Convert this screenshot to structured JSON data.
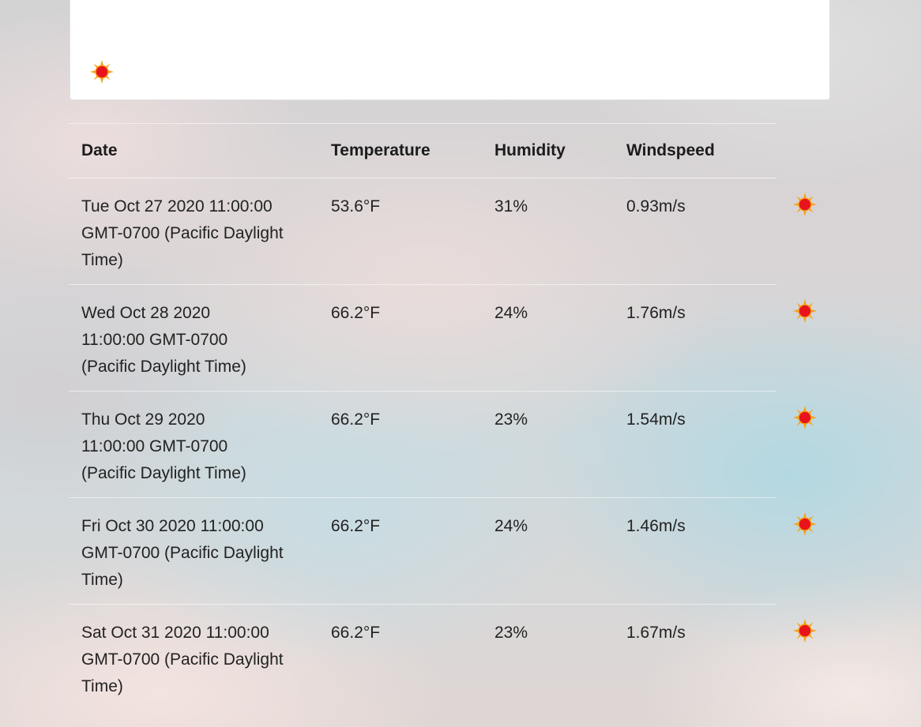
{
  "top_card": {
    "icon": "sun-icon"
  },
  "table": {
    "headers": {
      "date": "Date",
      "temperature": "Temperature",
      "humidity": "Humidity",
      "windspeed": "Windspeed"
    },
    "rows": [
      {
        "date": "Tue Oct 27 2020 11:00:00 GMT-0700 (Pacific Daylight Time)",
        "temperature": "53.6°F",
        "humidity": "31%",
        "windspeed": "0.93m/s",
        "icon": "sun-icon"
      },
      {
        "date": "Wed Oct 28 2020 11:00:00 GMT-0700 (Pacific Daylight Time)",
        "temperature": "66.2°F",
        "humidity": "24%",
        "windspeed": "1.76m/s",
        "icon": "sun-icon"
      },
      {
        "date": "Thu Oct 29 2020 11:00:00 GMT-0700 (Pacific Daylight Time)",
        "temperature": "66.2°F",
        "humidity": "23%",
        "windspeed": "1.54m/s",
        "icon": "sun-icon"
      },
      {
        "date": "Fri Oct 30 2020 11:00:00 GMT-0700 (Pacific Daylight Time)",
        "temperature": "66.2°F",
        "humidity": "24%",
        "windspeed": "1.46m/s",
        "icon": "sun-icon"
      },
      {
        "date": "Sat Oct 31 2020 11:00:00 GMT-0700 (Pacific Daylight Time)",
        "temperature": "66.2°F",
        "humidity": "23%",
        "windspeed": "1.67m/s",
        "icon": "sun-icon"
      }
    ]
  },
  "colors": {
    "sun_core": "#e8141c",
    "sun_rays": "#f6a21a",
    "card_background": "#ffffff"
  }
}
